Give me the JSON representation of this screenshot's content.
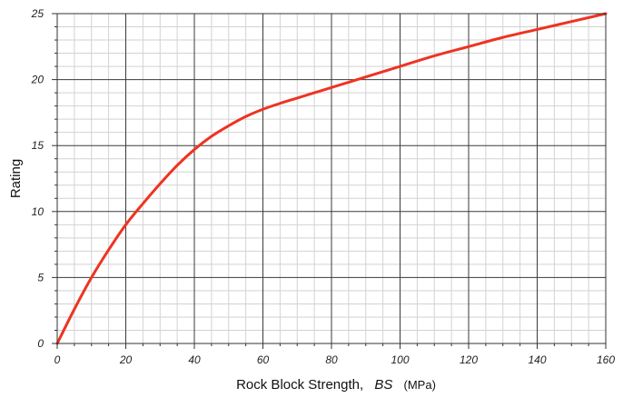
{
  "chart_data": {
    "type": "line",
    "xlabel": {
      "prefix": "Rock Block Strength,",
      "symbol": "BS",
      "unit": "(MPa)"
    },
    "ylabel": "Rating",
    "xlim": [
      0,
      160
    ],
    "ylim": [
      0,
      25
    ],
    "x_ticks": [
      "0",
      "20",
      "40",
      "60",
      "80",
      "100",
      "120",
      "140",
      "160"
    ],
    "y_ticks": [
      "0",
      "5",
      "10",
      "15",
      "20",
      "25"
    ],
    "grid": true,
    "series_color": "#ee3322",
    "series": [
      {
        "points": [
          [
            0,
            0
          ],
          [
            5,
            2.6
          ],
          [
            10,
            5.0
          ],
          [
            15,
            7.1
          ],
          [
            20,
            9.0
          ],
          [
            25,
            10.6
          ],
          [
            30,
            12.1
          ],
          [
            35,
            13.5
          ],
          [
            40,
            14.7
          ],
          [
            45,
            15.7
          ],
          [
            50,
            16.5
          ],
          [
            55,
            17.2
          ],
          [
            60,
            17.75
          ],
          [
            65,
            18.2
          ],
          [
            70,
            18.6
          ],
          [
            75,
            19.0
          ],
          [
            80,
            19.4
          ],
          [
            90,
            20.2
          ],
          [
            100,
            21.0
          ],
          [
            110,
            21.8
          ],
          [
            120,
            22.5
          ],
          [
            130,
            23.2
          ],
          [
            140,
            23.8
          ],
          [
            150,
            24.4
          ],
          [
            160,
            25.0
          ]
        ]
      }
    ]
  }
}
